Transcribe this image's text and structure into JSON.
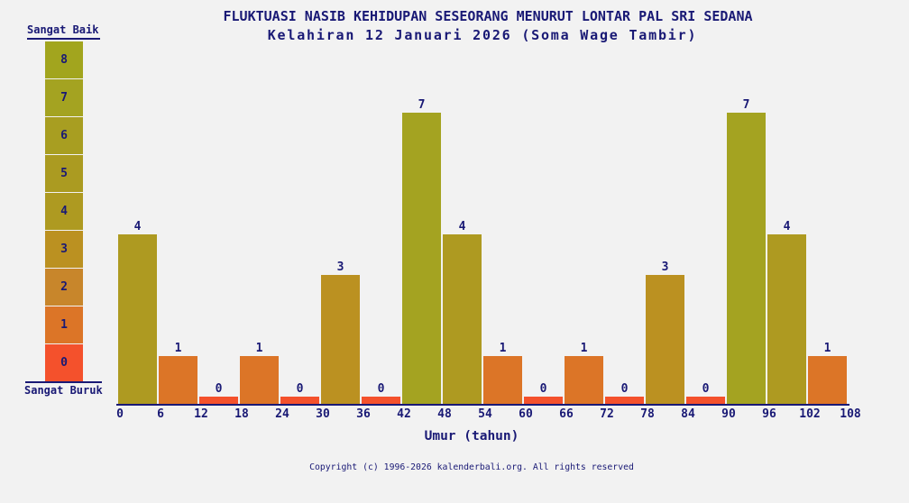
{
  "page": {
    "background": "#f2f2f2",
    "text_color": "#191975"
  },
  "header": {
    "title": "FLUKTUASI NASIB KEHIDUPAN SESEORANG MENURUT LONTAR PAL SRI SEDANA",
    "subtitle": "Kelahiran 12 Januari 2026 (Soma Wage Tambir)"
  },
  "legend": {
    "top_label": "Sangat Baik",
    "bottom_label": "Sangat Buruk",
    "levels": [
      8,
      7,
      6,
      5,
      4,
      3,
      2,
      1,
      0
    ]
  },
  "chart_data": {
    "type": "bar",
    "title": "FLUKTUASI NASIB KEHIDUPAN SESEORANG MENURUT LONTAR PAL SRI SEDANA",
    "subtitle": "Kelahiran 12 Januari 2026 (Soma Wage Tambir)",
    "xlabel": "Umur (tahun)",
    "ylabel": "",
    "ylim": [
      0,
      8
    ],
    "bin_width_years": 6,
    "bin_starts": [
      0,
      6,
      12,
      18,
      24,
      30,
      36,
      42,
      48,
      54,
      60,
      66,
      72,
      78,
      84,
      90,
      96,
      102
    ],
    "values": [
      4,
      1,
      0,
      1,
      0,
      3,
      0,
      7,
      4,
      1,
      0,
      1,
      0,
      3,
      0,
      7,
      4,
      1
    ],
    "x_tick_labels": [
      "0",
      "6",
      "12",
      "18",
      "24",
      "30",
      "36",
      "42",
      "48",
      "54",
      "60",
      "66",
      "72",
      "78",
      "84",
      "90",
      "96",
      "102",
      "108"
    ],
    "value_colors": {
      "0": "#f4512c",
      "1": "#dc7527",
      "2": "#c8862b",
      "3": "#bb9121",
      "4": "#ae9a21",
      "5": "#ab9b21",
      "6": "#a89e21",
      "7": "#a4a321",
      "8": "#a2a51e"
    },
    "grid": false,
    "legend_position": "left",
    "scale_best_label": "Sangat Baik",
    "scale_worst_label": "Sangat Buruk"
  },
  "footer": {
    "copyright": "Copyright (c) 1996-2026 kalenderbali.org. All rights reserved"
  }
}
